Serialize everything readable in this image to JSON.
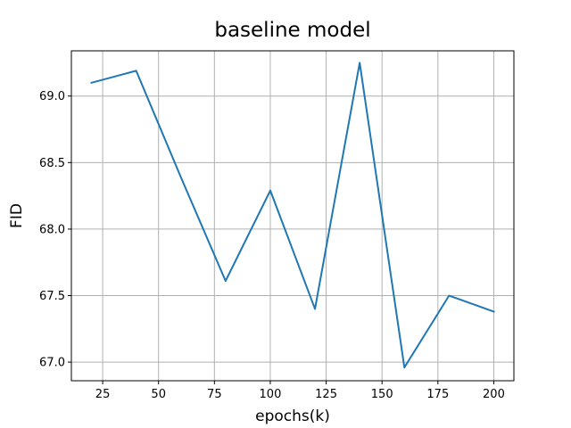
{
  "chart_data": {
    "type": "line",
    "title": "baseline model",
    "xlabel": "epochs(k)",
    "ylabel": "FID",
    "xlim": [
      11,
      209
    ],
    "ylim": [
      66.86,
      69.34
    ],
    "grid": true,
    "xticks": [
      25,
      50,
      75,
      100,
      125,
      150,
      175,
      200
    ],
    "xtick_labels": [
      "25",
      "50",
      "75",
      "100",
      "125",
      "150",
      "175",
      "200"
    ],
    "yticks": [
      67.0,
      67.5,
      68.0,
      68.5,
      69.0
    ],
    "ytick_labels": [
      "67.0",
      "67.5",
      "68.0",
      "68.5",
      "69.0"
    ],
    "series": [
      {
        "color": "#1f77b4",
        "x": [
          20,
          40,
          60,
          80,
          100,
          120,
          140,
          160,
          180,
          200
        ],
        "y": [
          69.1,
          69.19,
          68.39,
          67.61,
          68.29,
          67.4,
          69.25,
          66.96,
          67.5,
          67.38
        ]
      }
    ],
    "colors": {
      "grid": "#b0b0b0",
      "axes": "#000000",
      "background": "#ffffff"
    }
  }
}
